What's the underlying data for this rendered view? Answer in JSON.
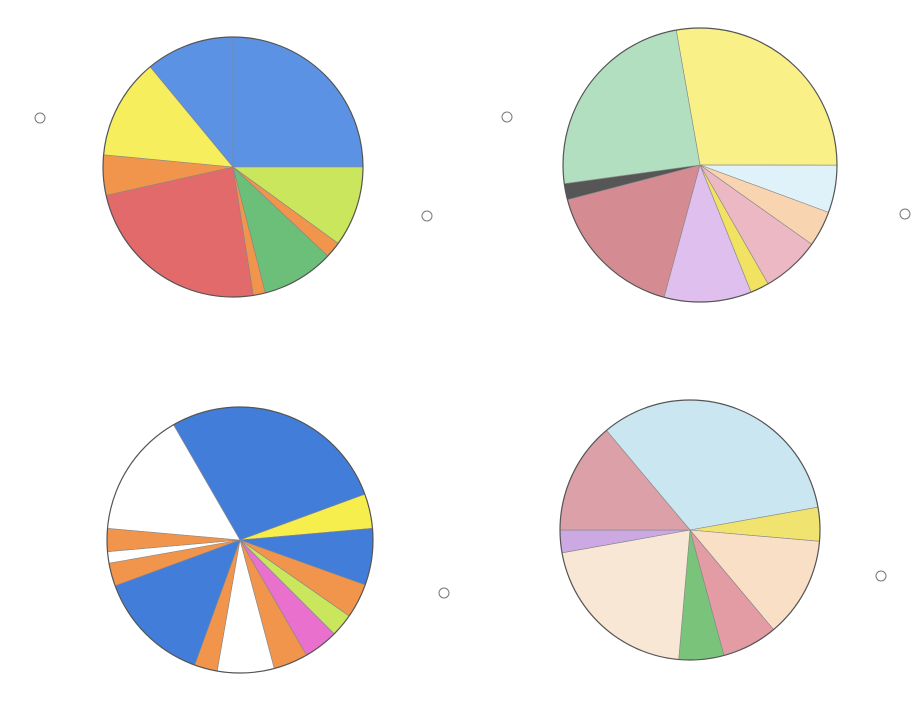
{
  "chart_data": [
    {
      "type": "pie",
      "values": [
        25,
        10,
        2,
        9,
        1.5,
        24,
        5,
        12.5,
        11
      ],
      "colors": [
        "#4a86e0",
        "#c4e34a",
        "#f08a3a",
        "#5cb86a",
        "#f08a3a",
        "#e05a5a",
        "#f08a3a",
        "#f5ec4a",
        "#4a86e0"
      ]
    },
    {
      "type": "pie",
      "values": [
        27.8,
        5.6,
        4.2,
        6.9,
        2.2,
        10.3,
        16.7,
        1.9,
        24.4
      ],
      "colors": [
        "#f8f07a",
        "#dcf0f8",
        "#f8cfa8",
        "#eab0bc",
        "#f0e050",
        "#dcb8ec",
        "#cf7f86",
        "#444444",
        "#a8dcb8"
      ]
    },
    {
      "type": "pie",
      "values": [
        27.8,
        4.2,
        6.9,
        4.2,
        2.8,
        4.2,
        4.2,
        6.9,
        2.8,
        13.9,
        2.8,
        1.4,
        2.8,
        15.3
      ],
      "colors": [
        "#2f6fd6",
        "#f5ec3a",
        "#2f6fd6",
        "#f08a3a",
        "#c4e34a",
        "#e860c8",
        "#f08a3a",
        "#ffffff",
        "#f08a3a",
        "#2f6fd6",
        "#f08a3a",
        "#ffffff",
        "#f08a3a",
        "#ffffff"
      ]
    },
    {
      "type": "pie",
      "values": [
        33.3,
        4.2,
        12.5,
        6.9,
        5.6,
        20.8,
        2.8,
        13.9
      ],
      "colors": [
        "#c4e4f0",
        "#f0e060",
        "#f8dcc0",
        "#e0909a",
        "#6cbc6c",
        "#f8e4d0",
        "#c8a0e0",
        "#d8969e"
      ]
    }
  ]
}
